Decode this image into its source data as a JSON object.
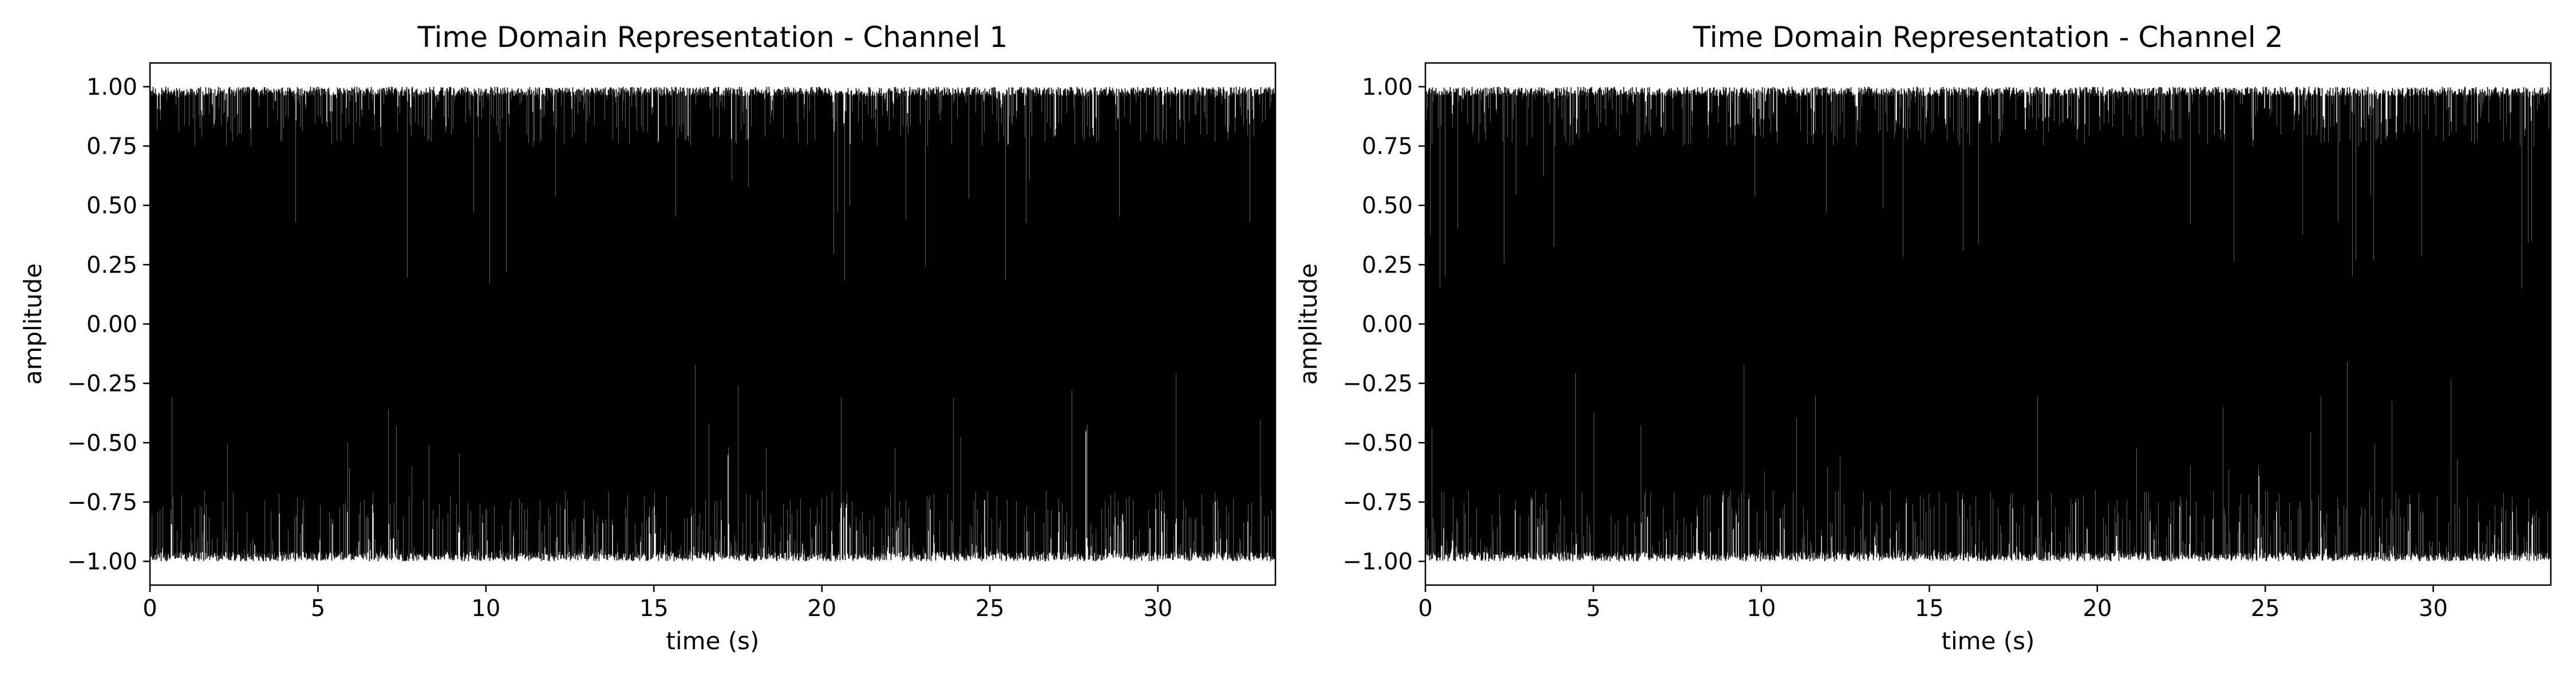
{
  "chart_data": [
    {
      "type": "line",
      "title": "Time Domain Representation - Channel 1",
      "xlabel": "time (s)",
      "ylabel": "amplitude",
      "xlim": [
        0,
        33.5
      ],
      "ylim": [
        -1.1,
        1.1
      ],
      "xticks": [
        0,
        5,
        10,
        15,
        20,
        25,
        30
      ],
      "xtick_labels": [
        "0",
        "5",
        "10",
        "15",
        "20",
        "25",
        "30"
      ],
      "yticks": [
        -1.0,
        -0.75,
        -0.5,
        -0.25,
        0.0,
        0.25,
        0.5,
        0.75,
        1.0
      ],
      "ytick_labels": [
        "−1.00",
        "−0.75",
        "−0.50",
        "−0.25",
        "0.00",
        "0.25",
        "0.50",
        "0.75",
        "1.00"
      ],
      "grid": false,
      "series": [
        {
          "color": "#000000",
          "x_range": [
            0,
            33.5
          ],
          "y_range": [
            -1.0,
            1.0
          ]
        }
      ]
    },
    {
      "type": "line",
      "title": "Time Domain Representation - Channel 2",
      "xlabel": "time (s)",
      "ylabel": "amplitude",
      "xlim": [
        0,
        33.5
      ],
      "ylim": [
        -1.1,
        1.1
      ],
      "xticks": [
        0,
        5,
        10,
        15,
        20,
        25,
        30
      ],
      "xtick_labels": [
        "0",
        "5",
        "10",
        "15",
        "20",
        "25",
        "30"
      ],
      "yticks": [
        -1.0,
        -0.75,
        -0.5,
        -0.25,
        0.0,
        0.25,
        0.5,
        0.75,
        1.0
      ],
      "ytick_labels": [
        "−1.00",
        "−0.75",
        "−0.50",
        "−0.25",
        "0.00",
        "0.25",
        "0.50",
        "0.75",
        "1.00"
      ],
      "grid": false,
      "series": [
        {
          "color": "#000000",
          "x_range": [
            0,
            33.5
          ],
          "y_range": [
            -1.0,
            1.0
          ]
        }
      ]
    }
  ]
}
